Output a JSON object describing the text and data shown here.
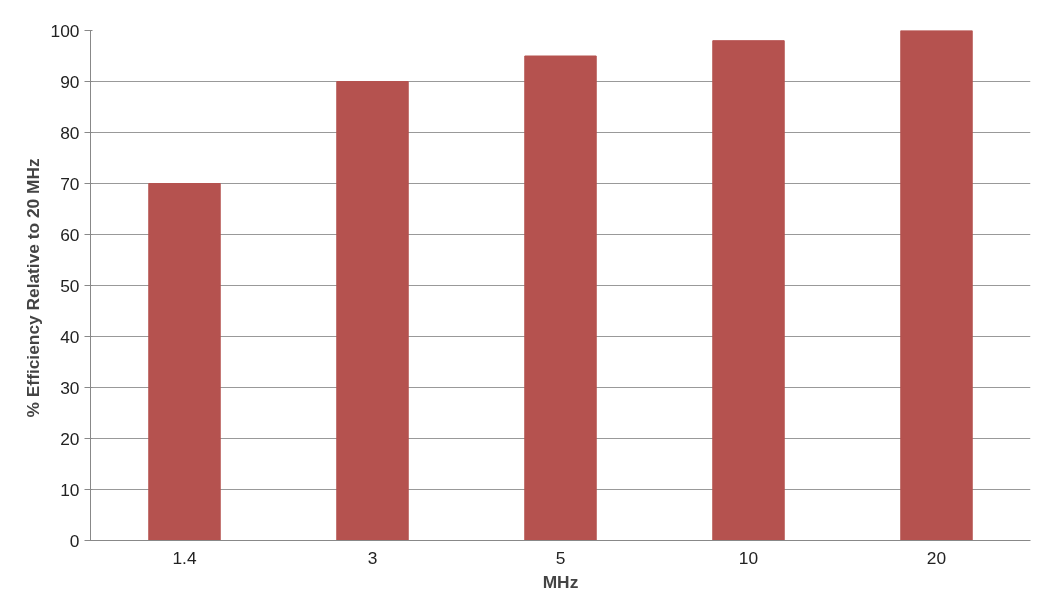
{
  "chart_data": {
    "type": "bar",
    "xlabel": "MHz",
    "ylabel": "% Efficiency  Relative to 20 MHz",
    "categories": [
      "1.4",
      "3",
      "5",
      "10",
      "20"
    ],
    "series": [
      {
        "color": "#b5524f",
        "values": [
          70,
          90,
          95,
          98,
          100
        ]
      }
    ],
    "ylim": [
      0,
      100
    ],
    "yticks": [
      0,
      10,
      20,
      30,
      40,
      50,
      60,
      70,
      80,
      90,
      100
    ],
    "grid": "y"
  }
}
